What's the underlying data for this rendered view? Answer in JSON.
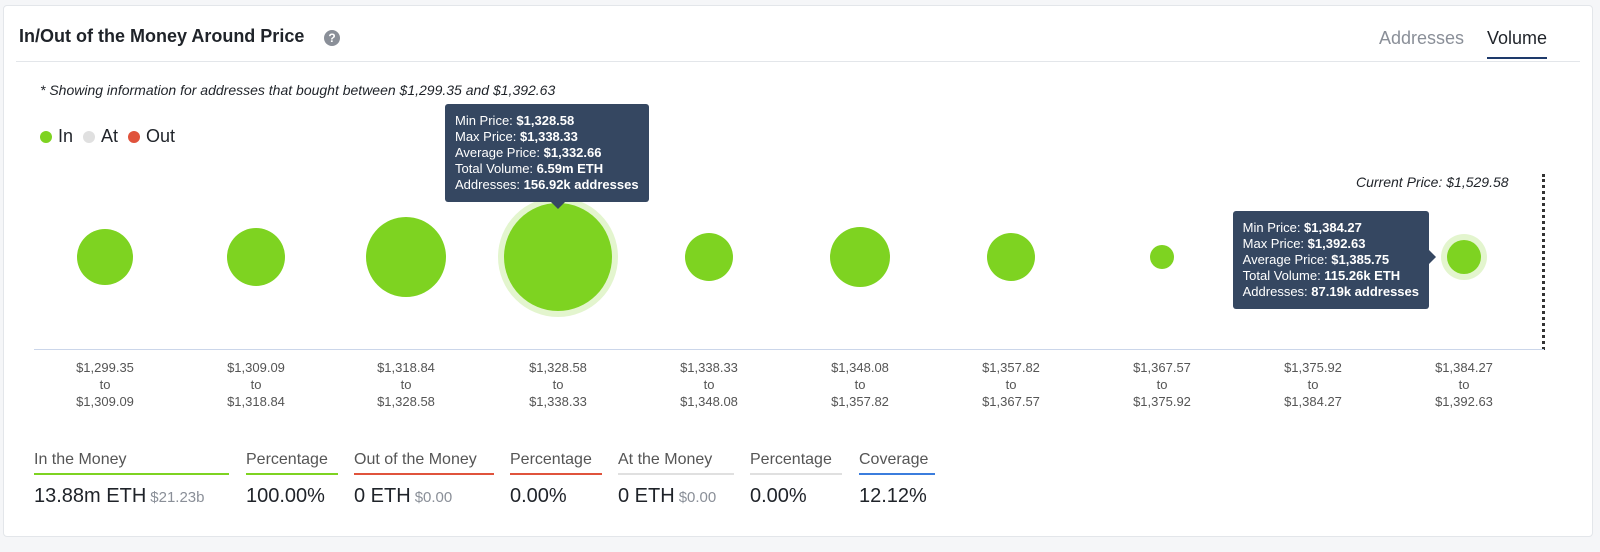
{
  "header": {
    "title": "In/Out of the Money Around Price",
    "help": "?",
    "tabs": [
      "Addresses",
      "Volume"
    ],
    "active_tab": "Volume"
  },
  "note": "* Showing information for addresses that bought between $1,299.35 and $1,392.63",
  "legend": [
    {
      "label": "In",
      "color": "#7ed321"
    },
    {
      "label": "At",
      "color": "#e0e0e0"
    },
    {
      "label": "Out",
      "color": "#e0533c"
    }
  ],
  "current_price": "Current Price: $1,529.58",
  "ranges": [
    {
      "from": "$1,299.35",
      "to": "$1,309.09"
    },
    {
      "from": "$1,309.09",
      "to": "$1,318.84"
    },
    {
      "from": "$1,318.84",
      "to": "$1,328.58"
    },
    {
      "from": "$1,328.58",
      "to": "$1,338.33"
    },
    {
      "from": "$1,338.33",
      "to": "$1,348.08"
    },
    {
      "from": "$1,348.08",
      "to": "$1,357.82"
    },
    {
      "from": "$1,357.82",
      "to": "$1,367.57"
    },
    {
      "from": "$1,367.57",
      "to": "$1,375.92"
    },
    {
      "from": "$1,375.92",
      "to": "$1,384.27"
    },
    {
      "from": "$1,384.27",
      "to": "$1,392.63"
    }
  ],
  "range_sep": "to",
  "tooltips": [
    {
      "min": "$1,328.58",
      "max": "$1,338.33",
      "avg": "$1,332.66",
      "vol": "6.59m ETH",
      "addr": "156.92k addresses"
    },
    {
      "min": "$1,384.27",
      "max": "$1,392.63",
      "avg": "$1,385.75",
      "vol": "115.26k ETH",
      "addr": "87.19k addresses"
    }
  ],
  "tooltip_labels": {
    "min": "Min Price: ",
    "max": "Max Price: ",
    "avg": "Average Price: ",
    "vol": "Total Volume: ",
    "addr": "Addresses: "
  },
  "stats": [
    {
      "label": "In the Money",
      "value": "13.88m ETH",
      "sub": "$21.23b",
      "color": "#7ed321"
    },
    {
      "label": "Percentage",
      "value": "100.00%",
      "color": "#7ed321"
    },
    {
      "label": "Out of the Money",
      "value": "0 ETH",
      "sub": "$0.00",
      "color": "#e0533c"
    },
    {
      "label": "Percentage",
      "value": "0.00%",
      "color": "#e0533c"
    },
    {
      "label": "At the Money",
      "value": "0 ETH",
      "sub": "$0.00",
      "color": "#e0e0e0"
    },
    {
      "label": "Percentage",
      "value": "0.00%",
      "color": "#e0e0e0"
    },
    {
      "label": "Coverage",
      "value": "12.12%",
      "color": "#3b7ddd"
    }
  ]
}
